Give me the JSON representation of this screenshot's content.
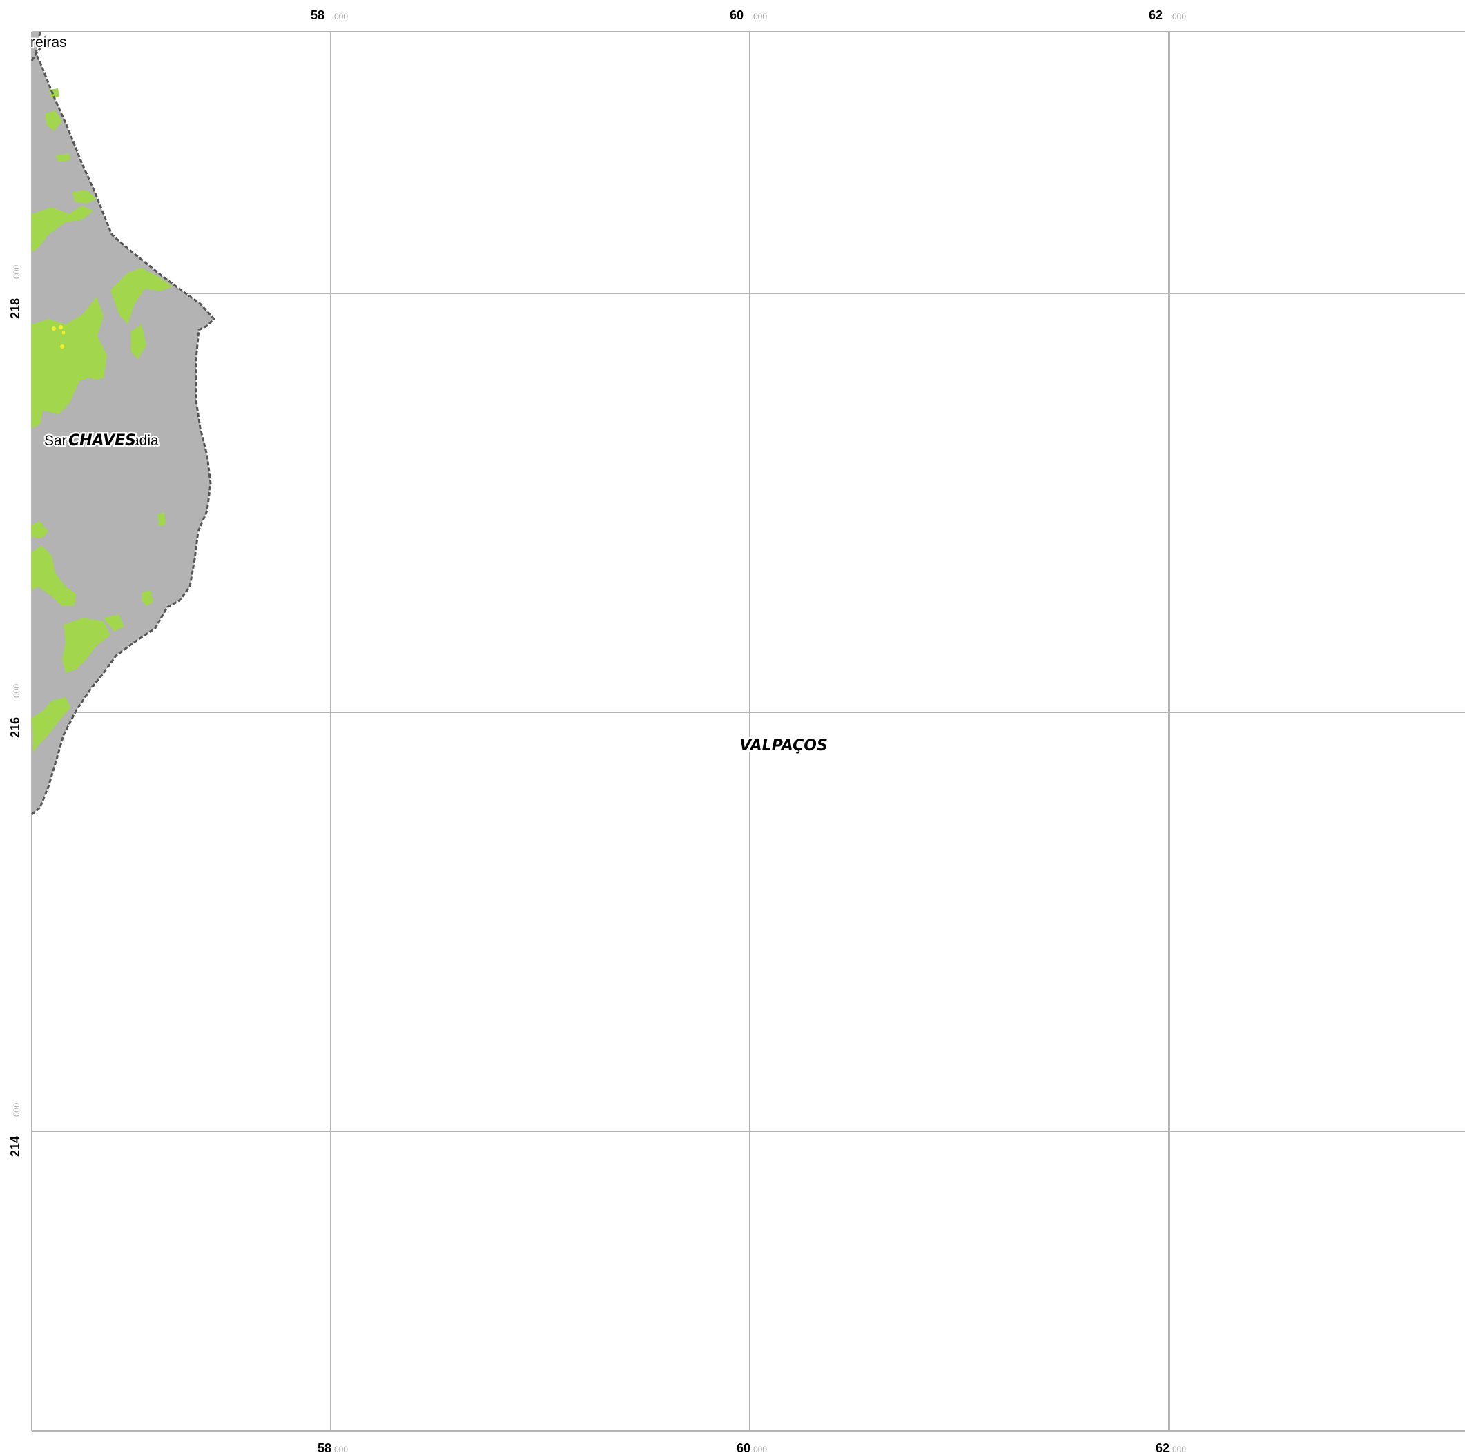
{
  "map": {
    "colors": {
      "background": "#ffffff",
      "frame": "#b4b4b4",
      "grid": "#b4b4b4",
      "territory_fill": "#b3b3b3",
      "vegetation": "#a2d64c",
      "hotspot": "#f2ef2a",
      "boundary": "#555555"
    },
    "grid": {
      "x_labels": [
        {
          "major": "58",
          "minor": "000"
        },
        {
          "major": "60",
          "minor": "000"
        },
        {
          "major": "62",
          "minor": "000"
        }
      ],
      "y_labels": [
        {
          "major": "218",
          "minor": "000"
        },
        {
          "major": "216",
          "minor": "000"
        },
        {
          "major": "214",
          "minor": "000"
        }
      ]
    },
    "labels": {
      "municipalities": [
        "CHAVES",
        "VALPAÇOS"
      ],
      "places": [
        "reiras",
        "Sar",
        "adia"
      ]
    },
    "icons": [
      "municipal-boundary-dashed-line"
    ]
  }
}
